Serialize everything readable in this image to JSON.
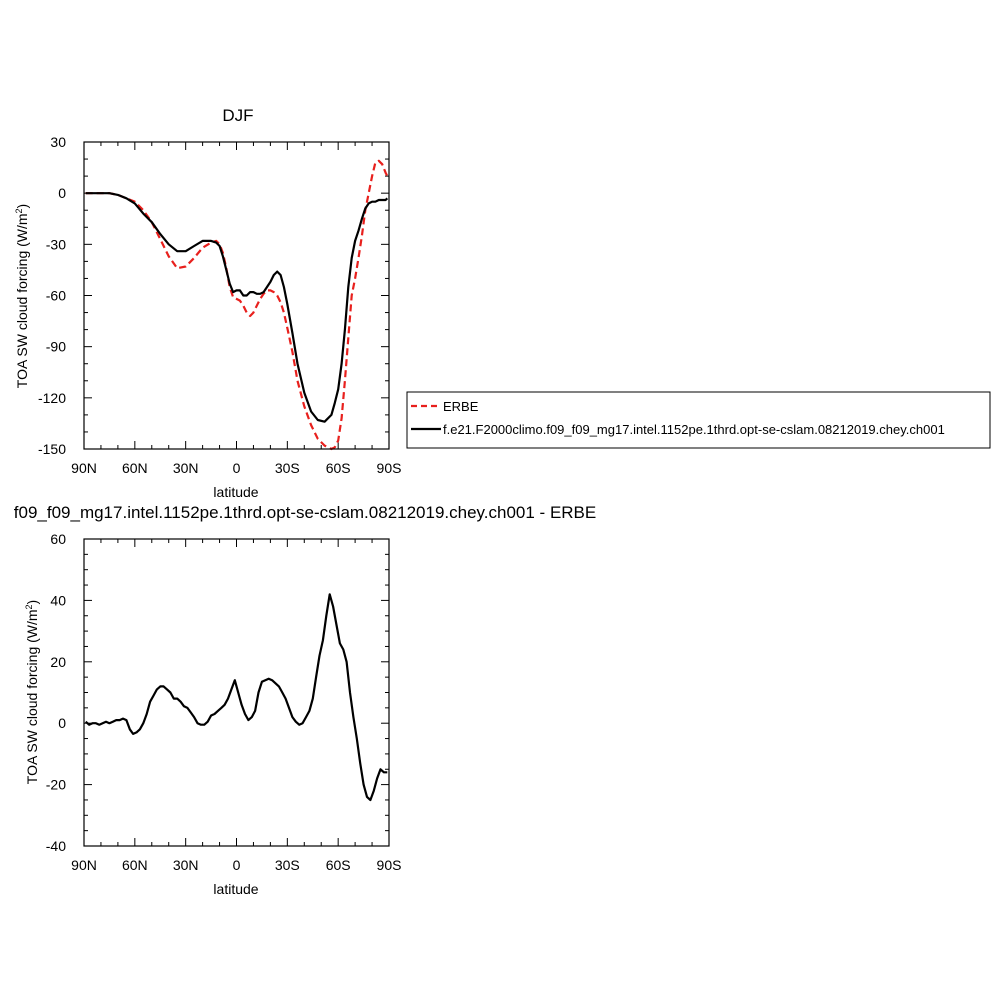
{
  "chart_data": [
    {
      "type": "line",
      "title": "DJF",
      "xlabel": "latitude",
      "ylabel": "TOA SW cloud forcing (W/m",
      "ylabel_sup": "2",
      "ylabel_end": ")",
      "xlim": [
        90,
        -90
      ],
      "ylim": [
        -150,
        30
      ],
      "x_ticks": [
        90,
        60,
        30,
        0,
        -30,
        -60,
        -90
      ],
      "x_tick_labels": [
        "90N",
        "60N",
        "30N",
        "0",
        "30S",
        "60S",
        "90S"
      ],
      "y_ticks": [
        30,
        0,
        -30,
        -60,
        -90,
        -120,
        -150
      ],
      "y_tick_labels": [
        "30",
        "0",
        "-30",
        "-60",
        "-90",
        "-120",
        "-150"
      ],
      "legend_position": "right",
      "series": [
        {
          "name": "ERBE",
          "color": "#e8201d",
          "style": "dashed",
          "x": [
            89,
            85,
            80,
            75,
            70,
            65,
            60,
            55,
            50,
            45,
            40,
            35,
            30,
            25,
            20,
            15,
            12,
            10,
            8,
            6,
            4,
            2,
            0,
            -2,
            -4,
            -6,
            -8,
            -10,
            -12,
            -14,
            -16,
            -18,
            -20,
            -22,
            -24,
            -26,
            -28,
            -30,
            -33,
            -36,
            -40,
            -44,
            -48,
            -52,
            -56,
            -58,
            -60,
            -62,
            -64,
            -66,
            -68,
            -70,
            -72,
            -74,
            -76,
            -78,
            -80,
            -82,
            -84,
            -86,
            -88,
            -89
          ],
          "values": [
            0,
            0,
            0,
            0,
            -1,
            -3,
            -5,
            -10,
            -17,
            -27,
            -37,
            -44,
            -43,
            -38,
            -32,
            -29,
            -28,
            -30,
            -35,
            -44,
            -55,
            -61,
            -62,
            -63,
            -66,
            -70,
            -72,
            -70,
            -66,
            -62,
            -59,
            -57,
            -57,
            -58,
            -60,
            -64,
            -70,
            -79,
            -93,
            -110,
            -125,
            -136,
            -144,
            -148,
            -150,
            -149,
            -145,
            -132,
            -110,
            -85,
            -60,
            -50,
            -38,
            -25,
            -10,
            0,
            10,
            18,
            19,
            17,
            12,
            10
          ]
        },
        {
          "name": "f.e21.F2000climo.f09_f09_mg17.intel.1152pe.1thrd.opt-se-cslam.08212019.chey.ch001",
          "color": "#000000",
          "style": "solid",
          "x": [
            89,
            85,
            80,
            75,
            70,
            65,
            60,
            55,
            50,
            45,
            40,
            35,
            30,
            25,
            20,
            15,
            12,
            10,
            8,
            6,
            4,
            2,
            0,
            -2,
            -4,
            -6,
            -8,
            -10,
            -12,
            -14,
            -16,
            -18,
            -20,
            -22,
            -24,
            -26,
            -28,
            -30,
            -33,
            -36,
            -40,
            -44,
            -48,
            -52,
            -56,
            -58,
            -60,
            -62,
            -64,
            -66,
            -68,
            -70,
            -72,
            -74,
            -76,
            -78,
            -80,
            -82,
            -84,
            -86,
            -88,
            -89
          ],
          "values": [
            0,
            0,
            0,
            0,
            -1,
            -3,
            -6,
            -12,
            -17,
            -24,
            -30,
            -34,
            -34,
            -31,
            -28,
            -28,
            -29,
            -31,
            -37,
            -45,
            -53,
            -58,
            -57,
            -57,
            -60,
            -60,
            -58,
            -58,
            -59,
            -59,
            -58,
            -55,
            -52,
            -48,
            -46,
            -48,
            -55,
            -65,
            -82,
            -100,
            -117,
            -128,
            -133,
            -134,
            -130,
            -123,
            -115,
            -100,
            -80,
            -55,
            -38,
            -28,
            -22,
            -15,
            -9,
            -6,
            -5,
            -5,
            -4,
            -4,
            -4,
            -3
          ]
        }
      ]
    },
    {
      "type": "line",
      "title": "f09_f09_mg17.intel.1152pe.1thrd.opt-se-cslam.08212019.chey.ch001 - ERBE",
      "xlabel": "latitude",
      "ylabel": "TOA SW cloud forcing (W/m",
      "ylabel_sup": "2",
      "ylabel_end": ")",
      "xlim": [
        90,
        -90
      ],
      "ylim": [
        -40,
        60
      ],
      "x_ticks": [
        90,
        60,
        30,
        0,
        -30,
        -60,
        -90
      ],
      "x_tick_labels": [
        "90N",
        "60N",
        "30N",
        "0",
        "30S",
        "60S",
        "90S"
      ],
      "y_ticks": [
        60,
        40,
        20,
        0,
        -20,
        -40
      ],
      "y_tick_labels": [
        "60",
        "40",
        "20",
        "0",
        "-20",
        "-40"
      ],
      "series": [
        {
          "color": "#000000",
          "style": "solid",
          "x": [
            89,
            87,
            85,
            83,
            81,
            79,
            77,
            75,
            73,
            71,
            69,
            67,
            65,
            63,
            61,
            59,
            57,
            55,
            53,
            51,
            49,
            47,
            45,
            43,
            41,
            39,
            37,
            35,
            33,
            31,
            29,
            27,
            25,
            23,
            21,
            19,
            17,
            15,
            13,
            11,
            9,
            7,
            5,
            3,
            1,
            -1,
            -3,
            -5,
            -7,
            -9,
            -11,
            -13,
            -15,
            -17,
            -19,
            -21,
            -23,
            -25,
            -27,
            -29,
            -31,
            -33,
            -35,
            -37,
            -39,
            -41,
            -43,
            -45,
            -47,
            -49,
            -51,
            -53,
            -55,
            -57,
            -59,
            -61,
            -63,
            -65,
            -67,
            -69,
            -71,
            -73,
            -75,
            -77,
            -79,
            -81,
            -83,
            -85,
            -87,
            -89
          ],
          "values": [
            0.5,
            -0.5,
            0,
            0,
            -0.5,
            0,
            0.5,
            0,
            0.5,
            1,
            1,
            1.5,
            1,
            -2,
            -3.5,
            -3,
            -2,
            0,
            3,
            7,
            9,
            11,
            12,
            12,
            11,
            10,
            8,
            8,
            7,
            5.5,
            5,
            3.5,
            2,
            0,
            -0.5,
            -0.5,
            0.5,
            2.5,
            3,
            4,
            5,
            6,
            8,
            11,
            14,
            10,
            6,
            3,
            1,
            2,
            4,
            10,
            13.5,
            14,
            14.5,
            14,
            13,
            12,
            10,
            8,
            5,
            2,
            0.5,
            -0.5,
            0,
            2,
            4,
            8,
            15,
            22,
            27,
            35,
            42,
            38,
            32,
            26,
            24,
            20,
            10,
            2,
            -5,
            -13,
            -20,
            -24,
            -25,
            -22,
            -18,
            -15,
            -16,
            -16
          ]
        }
      ]
    }
  ]
}
